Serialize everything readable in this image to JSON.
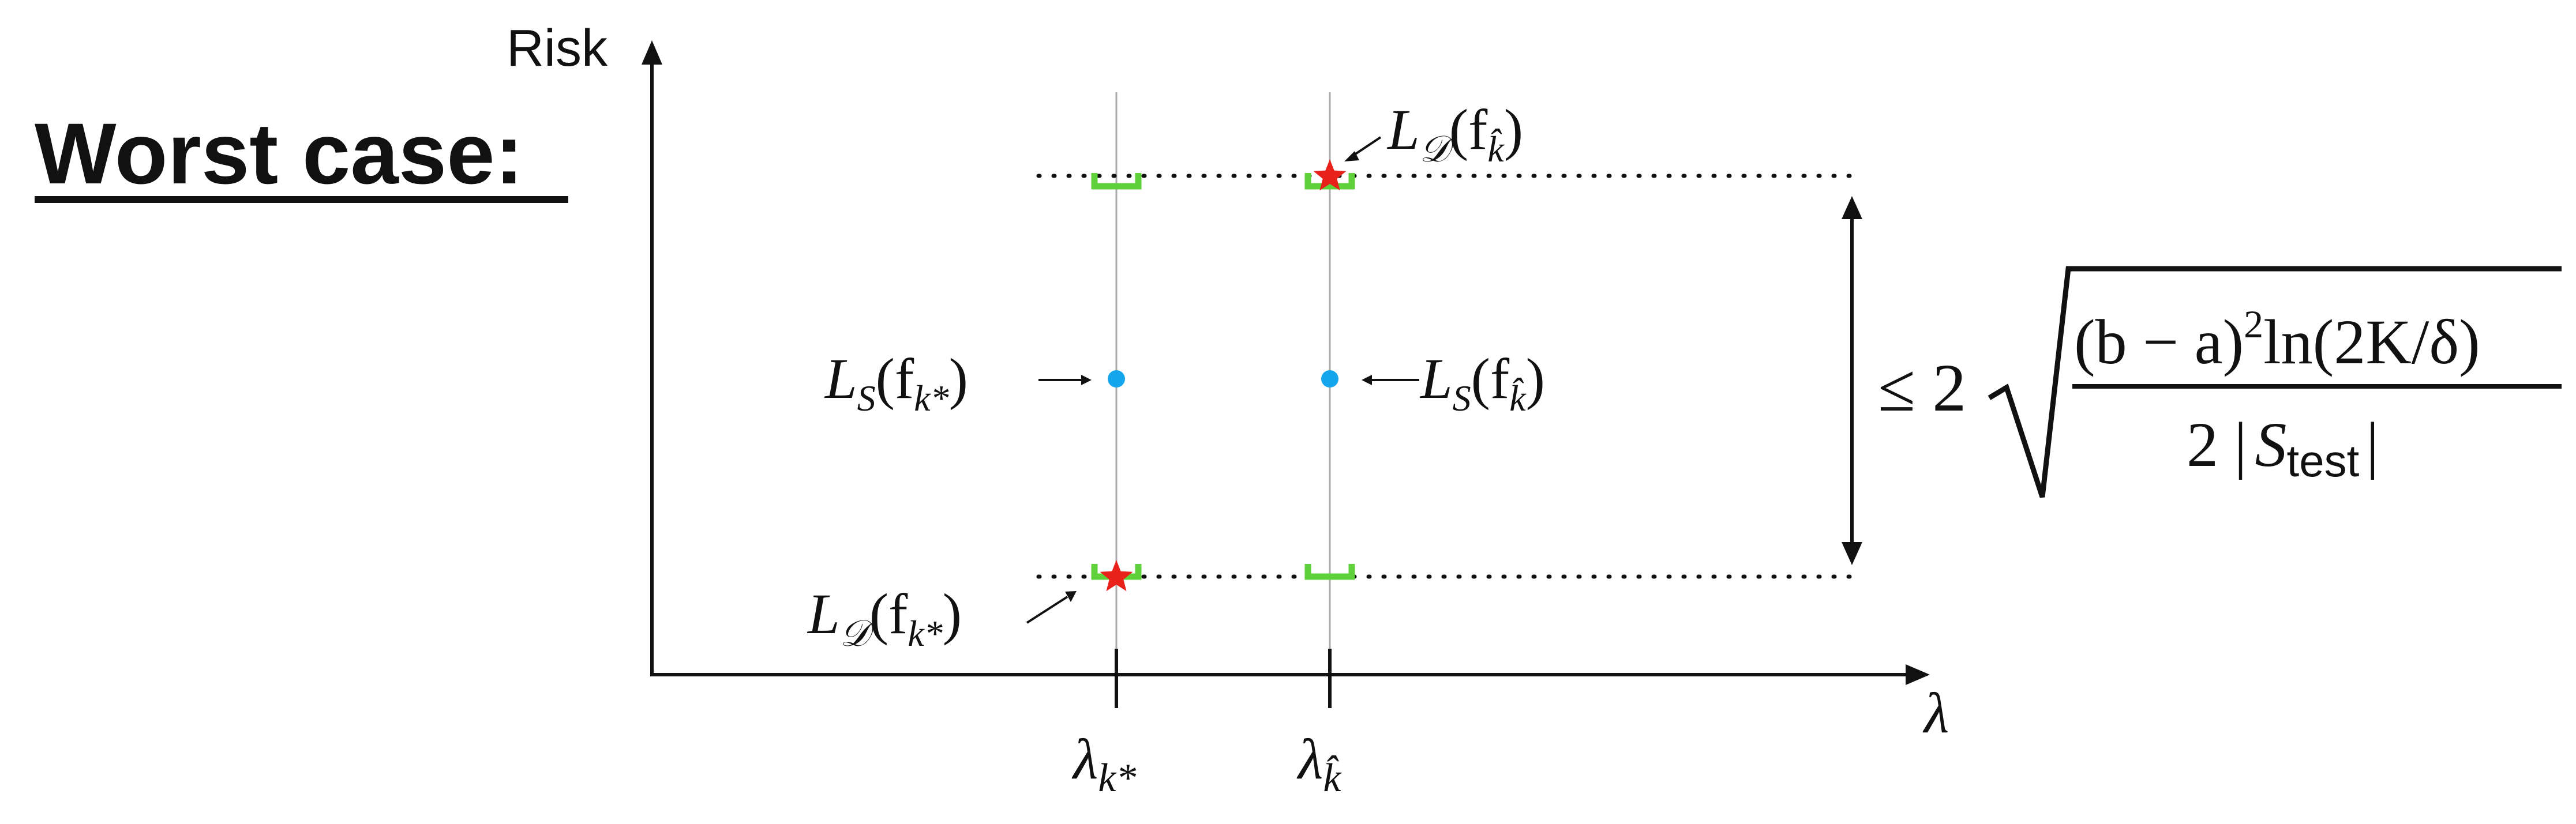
{
  "title": "Worst case:",
  "axes": {
    "y_label": "Risk",
    "x_label": "λ"
  },
  "ticks": [
    {
      "base": "λ",
      "sub": "k*"
    },
    {
      "base": "λ",
      "sub": "k̂"
    }
  ],
  "annotations": {
    "ld_fkhat": {
      "L": "L",
      "Lsub": "𝒟",
      "f": "(f",
      "fsub": "k̂",
      "close": ")"
    },
    "ld_fkstar": {
      "L": "L",
      "Lsub": "𝒟",
      "f": "(f",
      "fsub": "k*",
      "close": ")"
    },
    "ls_fkstar": {
      "L": "L",
      "Lsub": "S",
      "f": "(f",
      "fsub": "k*",
      "close": ")"
    },
    "ls_fkhat": {
      "L": "L",
      "Lsub": "S",
      "f": "(f",
      "fsub": "k̂",
      "close": ")"
    }
  },
  "bound": {
    "prefix": "≤ 2",
    "numerator": "(b − a)",
    "num_exp": "2",
    "num_ln": "ln(2K/δ)",
    "denominator_pre": "2 |",
    "denominator_S": "S",
    "denominator_sub": "test",
    "denominator_post": "|"
  },
  "colors": {
    "axis": "#111111",
    "bracket": "#5fd13a",
    "star": "#e8211b",
    "dot": "#14a5ec",
    "guide": "#aaaaaa"
  },
  "icons": {
    "star": "red-star-icon",
    "dot": "blue-dot-icon",
    "bracket": "green-bracket-icon"
  }
}
